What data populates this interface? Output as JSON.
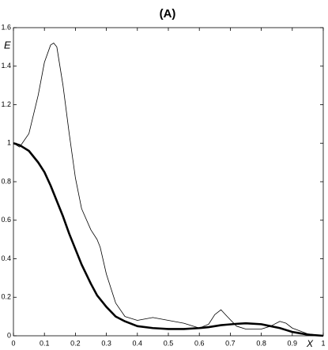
{
  "chart_data": {
    "type": "line",
    "title": "(A)",
    "x_label": "X",
    "y_label": "E",
    "x": [
      0,
      0.02,
      0.05,
      0.08,
      0.1,
      0.12,
      0.13,
      0.14,
      0.16,
      0.18,
      0.2,
      0.22,
      0.25,
      0.27,
      0.28,
      0.3,
      0.33,
      0.36,
      0.4,
      0.45,
      0.5,
      0.55,
      0.6,
      0.63,
      0.65,
      0.67,
      0.69,
      0.72,
      0.75,
      0.8,
      0.83,
      0.86,
      0.88,
      0.9,
      0.95,
      1
    ],
    "series": [
      {
        "color": "#000000",
        "linewidth": 0.8,
        "values": [
          1,
          0.98,
          1.05,
          1.25,
          1.42,
          1.51,
          1.52,
          1.5,
          1.3,
          1.05,
          0.82,
          0.66,
          0.55,
          0.5,
          0.46,
          0.32,
          0.17,
          0.1,
          0.08,
          0.095,
          0.08,
          0.065,
          0.04,
          0.06,
          0.11,
          0.135,
          0.1,
          0.05,
          0.035,
          0.035,
          0.05,
          0.075,
          0.065,
          0.04,
          0.01,
          0
        ]
      },
      {
        "color": "#000000",
        "linewidth": 2.6,
        "values": [
          1,
          0.99,
          0.96,
          0.9,
          0.85,
          0.78,
          0.74,
          0.7,
          0.62,
          0.53,
          0.45,
          0.37,
          0.27,
          0.21,
          0.19,
          0.15,
          0.1,
          0.075,
          0.05,
          0.04,
          0.035,
          0.035,
          0.04,
          0.045,
          0.05,
          0.055,
          0.058,
          0.062,
          0.065,
          0.06,
          0.05,
          0.04,
          0.03,
          0.02,
          0.006,
          0
        ]
      }
    ],
    "xlim": [
      0,
      1
    ],
    "xticks": [
      0,
      0.1,
      0.2,
      0.3,
      0.4,
      0.5,
      0.6,
      0.7,
      0.8,
      0.9,
      1
    ],
    "ylim": [
      0,
      1.6
    ],
    "yticks": [
      0,
      0.2,
      0.4,
      0.6,
      0.8,
      1,
      1.2,
      1.4,
      1.6
    ],
    "grid": false
  }
}
